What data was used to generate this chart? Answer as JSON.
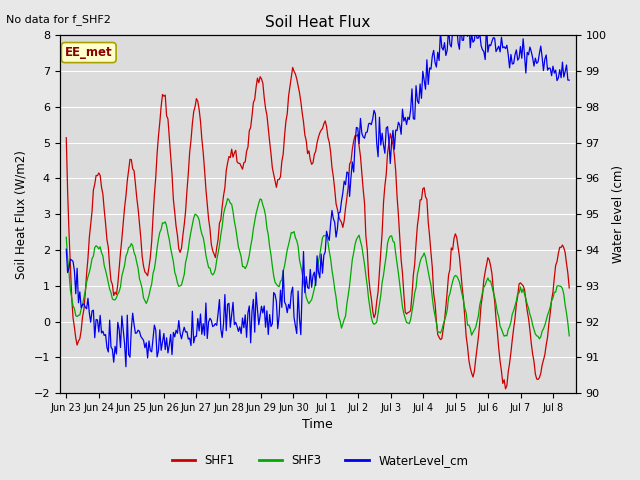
{
  "title": "Soil Heat Flux",
  "no_data_text": "No data for f_SHF2",
  "ylabel_left": "Soil Heat Flux (W/m2)",
  "ylabel_right": "Water level (cm)",
  "xlabel": "Time",
  "ylim_left": [
    -2.0,
    8.0
  ],
  "ylim_right": [
    90.0,
    100.0
  ],
  "yticks_left": [
    -2.0,
    -1.0,
    0.0,
    1.0,
    2.0,
    3.0,
    4.0,
    5.0,
    6.0,
    7.0,
    8.0
  ],
  "yticks_right": [
    90.0,
    91.0,
    92.0,
    93.0,
    94.0,
    95.0,
    96.0,
    97.0,
    98.0,
    99.0,
    100.0
  ],
  "fig_bg_color": "#e8e8e8",
  "plot_bg_color": "#dcdcdc",
  "grid_color": "#ffffff",
  "shf1_color": "#cc0000",
  "shf3_color": "#00aa00",
  "water_color": "#0000ee",
  "ee_met_box_color": "#ffffcc",
  "ee_met_text_color": "#8b0000",
  "tick_labels": [
    "Jun 23",
    "Jun 24",
    "Jun 25",
    "Jun 26",
    "Jun 27",
    "Jun 28",
    "Jun 29",
    "Jun 30",
    "Jul 1",
    "Jul 2",
    "Jul 3",
    "Jul 4",
    "Jul 5",
    "Jul 6",
    "Jul 7",
    "Jul 8"
  ],
  "n_days": 15.5,
  "n_hours": 372
}
